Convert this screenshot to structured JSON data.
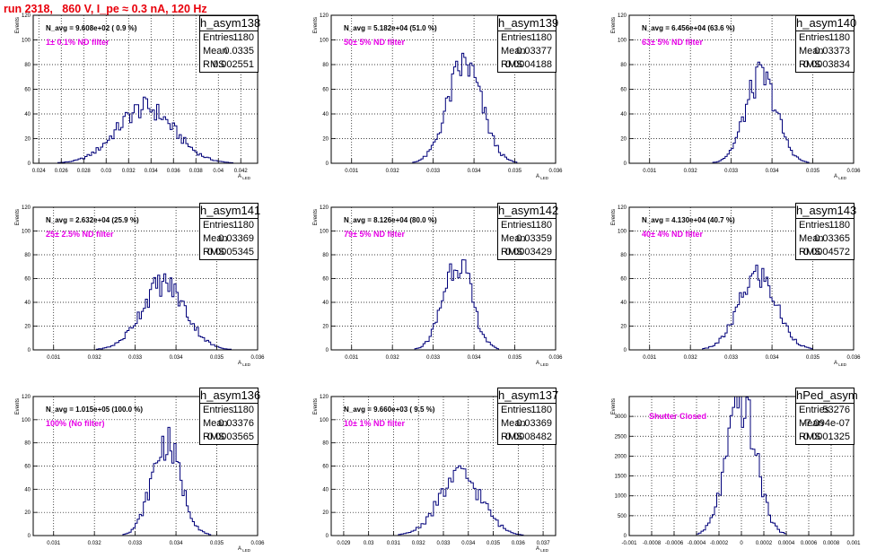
{
  "title": "run 2318,   860 V, I_pe ≈ 0.3 nA, 120 Hz",
  "colors": {
    "histogram": "#00007a",
    "annotation": "#e600e6",
    "title": "#e8000b"
  },
  "chart_data": [
    {
      "type": "histogram",
      "name": "h_asym138",
      "stats": {
        "Entries": "1180",
        "Mean": "0.0335",
        "RMS": "0.002551"
      },
      "n_avg_text": "N_avg = 9.608e+02 ( 0.9 %)",
      "filter_text": "1± 0.1% ND filter",
      "ylabel": "Events",
      "xlabel": "A_LED",
      "xlim": [
        0.0235,
        0.0435
      ],
      "ylim": [
        0,
        120
      ],
      "xticks": [
        0.024,
        0.026,
        0.028,
        0.03,
        0.032,
        0.034,
        0.036,
        0.038,
        0.04,
        0.042
      ],
      "xtick_labels": [
        "0.024",
        "0.026",
        "0.028",
        "0.03",
        "0.032",
        "0.034",
        "0.036",
        "0.038",
        "0.04",
        "0.042"
      ],
      "yticks": [
        0,
        20,
        40,
        60,
        80,
        100,
        120
      ],
      "mean": 0.0335,
      "rms": 0.002551,
      "peak": 45,
      "bin": 0.0002
    },
    {
      "type": "histogram",
      "name": "h_asym139",
      "stats": {
        "Entries": "1180",
        "Mean": "0.03377",
        "RMS": "0.0004188"
      },
      "n_avg_text": "N_avg = 5.182e+04 (51.0 %)",
      "filter_text": "50± 5% ND filter",
      "ylabel": "Events",
      "xlabel": "A_LED",
      "xlim": [
        0.0305,
        0.036
      ],
      "ylim": [
        0,
        120
      ],
      "xticks": [
        0.031,
        0.032,
        0.033,
        0.034,
        0.035,
        0.036
      ],
      "xtick_labels": [
        "0.031",
        "0.032",
        "0.033",
        "0.034",
        "0.035",
        "0.036"
      ],
      "yticks": [
        0,
        20,
        40,
        60,
        80,
        100,
        120
      ],
      "mean": 0.03377,
      "rms": 0.0004188,
      "peak": 80,
      "bin": 5e-05
    },
    {
      "type": "histogram",
      "name": "h_asym140",
      "stats": {
        "Entries": "1180",
        "Mean": "0.03373",
        "RMS": "0.0003834"
      },
      "n_avg_text": "N_avg = 6.456e+04 (63.6 %)",
      "filter_text": "63± 5% ND filter",
      "ylabel": "Events",
      "xlabel": "A_LED",
      "xlim": [
        0.0305,
        0.036
      ],
      "ylim": [
        0,
        120
      ],
      "xticks": [
        0.031,
        0.032,
        0.033,
        0.034,
        0.035,
        0.036
      ],
      "xtick_labels": [
        "0.031",
        "0.032",
        "0.033",
        "0.034",
        "0.035",
        "0.036"
      ],
      "yticks": [
        0,
        20,
        40,
        60,
        80,
        100,
        120
      ],
      "mean": 0.03373,
      "rms": 0.0003834,
      "peak": 70,
      "bin": 5e-05
    },
    {
      "type": "histogram",
      "name": "h_asym141",
      "stats": {
        "Entries": "1180",
        "Mean": "0.03369",
        "RMS": "0.0005345"
      },
      "n_avg_text": "N_avg = 2.632e+04 (25.9 %)",
      "filter_text": "25± 2.5% ND filter",
      "ylabel": "Events",
      "xlabel": "A_LED",
      "xlim": [
        0.0305,
        0.036
      ],
      "ylim": [
        0,
        120
      ],
      "xticks": [
        0.031,
        0.032,
        0.033,
        0.034,
        0.035,
        0.036
      ],
      "xtick_labels": [
        "0.031",
        "0.032",
        "0.033",
        "0.034",
        "0.035",
        "0.036"
      ],
      "yticks": [
        0,
        20,
        40,
        60,
        80,
        100,
        120
      ],
      "mean": 0.03369,
      "rms": 0.0005345,
      "peak": 56,
      "bin": 5e-05
    },
    {
      "type": "histogram",
      "name": "h_asym142",
      "stats": {
        "Entries": "1180",
        "Mean": "0.03359",
        "RMS": "0.0003429"
      },
      "n_avg_text": "N_avg = 8.126e+04 (80.0 %)",
      "filter_text": "79± 5% ND filter",
      "ylabel": "Events",
      "xlabel": "A_LED",
      "xlim": [
        0.0305,
        0.036
      ],
      "ylim": [
        0,
        120
      ],
      "xticks": [
        0.031,
        0.032,
        0.033,
        0.034,
        0.035,
        0.036
      ],
      "xtick_labels": [
        "0.031",
        "0.032",
        "0.033",
        "0.034",
        "0.035",
        "0.036"
      ],
      "yticks": [
        0,
        20,
        40,
        60,
        80,
        100,
        120
      ],
      "mean": 0.03359,
      "rms": 0.0003429,
      "peak": 76,
      "bin": 5e-05
    },
    {
      "type": "histogram",
      "name": "h_asym143",
      "stats": {
        "Entries": "1180",
        "Mean": "0.03365",
        "RMS": "0.0004572"
      },
      "n_avg_text": "N_avg = 4.130e+04 (40.7 %)",
      "filter_text": "40± 4% ND filter",
      "ylabel": "Events",
      "xlabel": "A_LED",
      "xlim": [
        0.0305,
        0.036
      ],
      "ylim": [
        0,
        120
      ],
      "xticks": [
        0.031,
        0.032,
        0.033,
        0.034,
        0.035,
        0.036
      ],
      "xtick_labels": [
        "0.031",
        "0.032",
        "0.033",
        "0.034",
        "0.035",
        "0.036"
      ],
      "yticks": [
        0,
        20,
        40,
        60,
        80,
        100,
        120
      ],
      "mean": 0.03365,
      "rms": 0.0004572,
      "peak": 63,
      "bin": 5e-05
    },
    {
      "type": "histogram",
      "name": "h_asym136",
      "stats": {
        "Entries": "1180",
        "Mean": "0.03376",
        "RMS": "0.0003565"
      },
      "n_avg_text": "N_avg = 1.015e+05 (100.0 %)",
      "filter_text": "100% (No filter)",
      "ylabel": "Events",
      "xlabel": "A_LED",
      "xlim": [
        0.0305,
        0.036
      ],
      "ylim": [
        0,
        120
      ],
      "xticks": [
        0.031,
        0.032,
        0.033,
        0.034,
        0.035,
        0.036
      ],
      "xtick_labels": [
        "0.031",
        "0.032",
        "0.033",
        "0.034",
        "0.035",
        "0.036"
      ],
      "yticks": [
        0,
        20,
        40,
        60,
        80,
        100,
        120
      ],
      "mean": 0.03376,
      "rms": 0.0003565,
      "peak": 80,
      "bin": 5e-05
    },
    {
      "type": "histogram",
      "name": "h_asym137",
      "stats": {
        "Entries": "1180",
        "Mean": "0.03369",
        "RMS": "0.0008482"
      },
      "n_avg_text": "N_avg = 9.660e+03 ( 9.5 %)",
      "filter_text": "10± 1% ND filter",
      "ylabel": "Events",
      "xlabel": "A_LED",
      "xlim": [
        0.0285,
        0.0375
      ],
      "ylim": [
        0,
        120
      ],
      "xticks": [
        0.029,
        0.03,
        0.031,
        0.032,
        0.033,
        0.034,
        0.035,
        0.036,
        0.037
      ],
      "xtick_labels": [
        "0.029",
        "0.03",
        "0.031",
        "0.032",
        "0.033",
        "0.034",
        "0.035",
        "0.036",
        "0.037"
      ],
      "yticks": [
        0,
        20,
        40,
        60,
        80,
        100,
        120
      ],
      "mean": 0.03369,
      "rms": 0.0008482,
      "peak": 52,
      "bin": 0.0001
    },
    {
      "type": "histogram",
      "name": "hPed_asym",
      "stats": {
        "Entries": "53276",
        "Mean": "-7.094e-07",
        "RMS": "0.0001325"
      },
      "n_avg_text": "",
      "filter_text": "Shutter Closed",
      "ylabel": "Events",
      "xlabel": "",
      "xlim": [
        -0.001,
        0.001
      ],
      "ylim": [
        0,
        3500
      ],
      "xticks": [
        -0.001,
        -0.0008,
        -0.0006,
        -0.0004,
        -0.0002,
        0,
        0.0002,
        0.0004,
        0.0006,
        0.0008,
        0.001
      ],
      "xtick_labels": [
        "-0.001",
        "-0.0008",
        "-0.0006",
        "-0.0004",
        "-0.0002",
        "0",
        "0.0002",
        "0.0004",
        "0.0006",
        "0.0008",
        "0.001"
      ],
      "yticks": [
        0,
        500,
        1000,
        1500,
        2000,
        2500,
        3000
      ],
      "mean": 0.0,
      "rms": 0.0001325,
      "peak": 3300,
      "bin": 2e-05
    }
  ]
}
